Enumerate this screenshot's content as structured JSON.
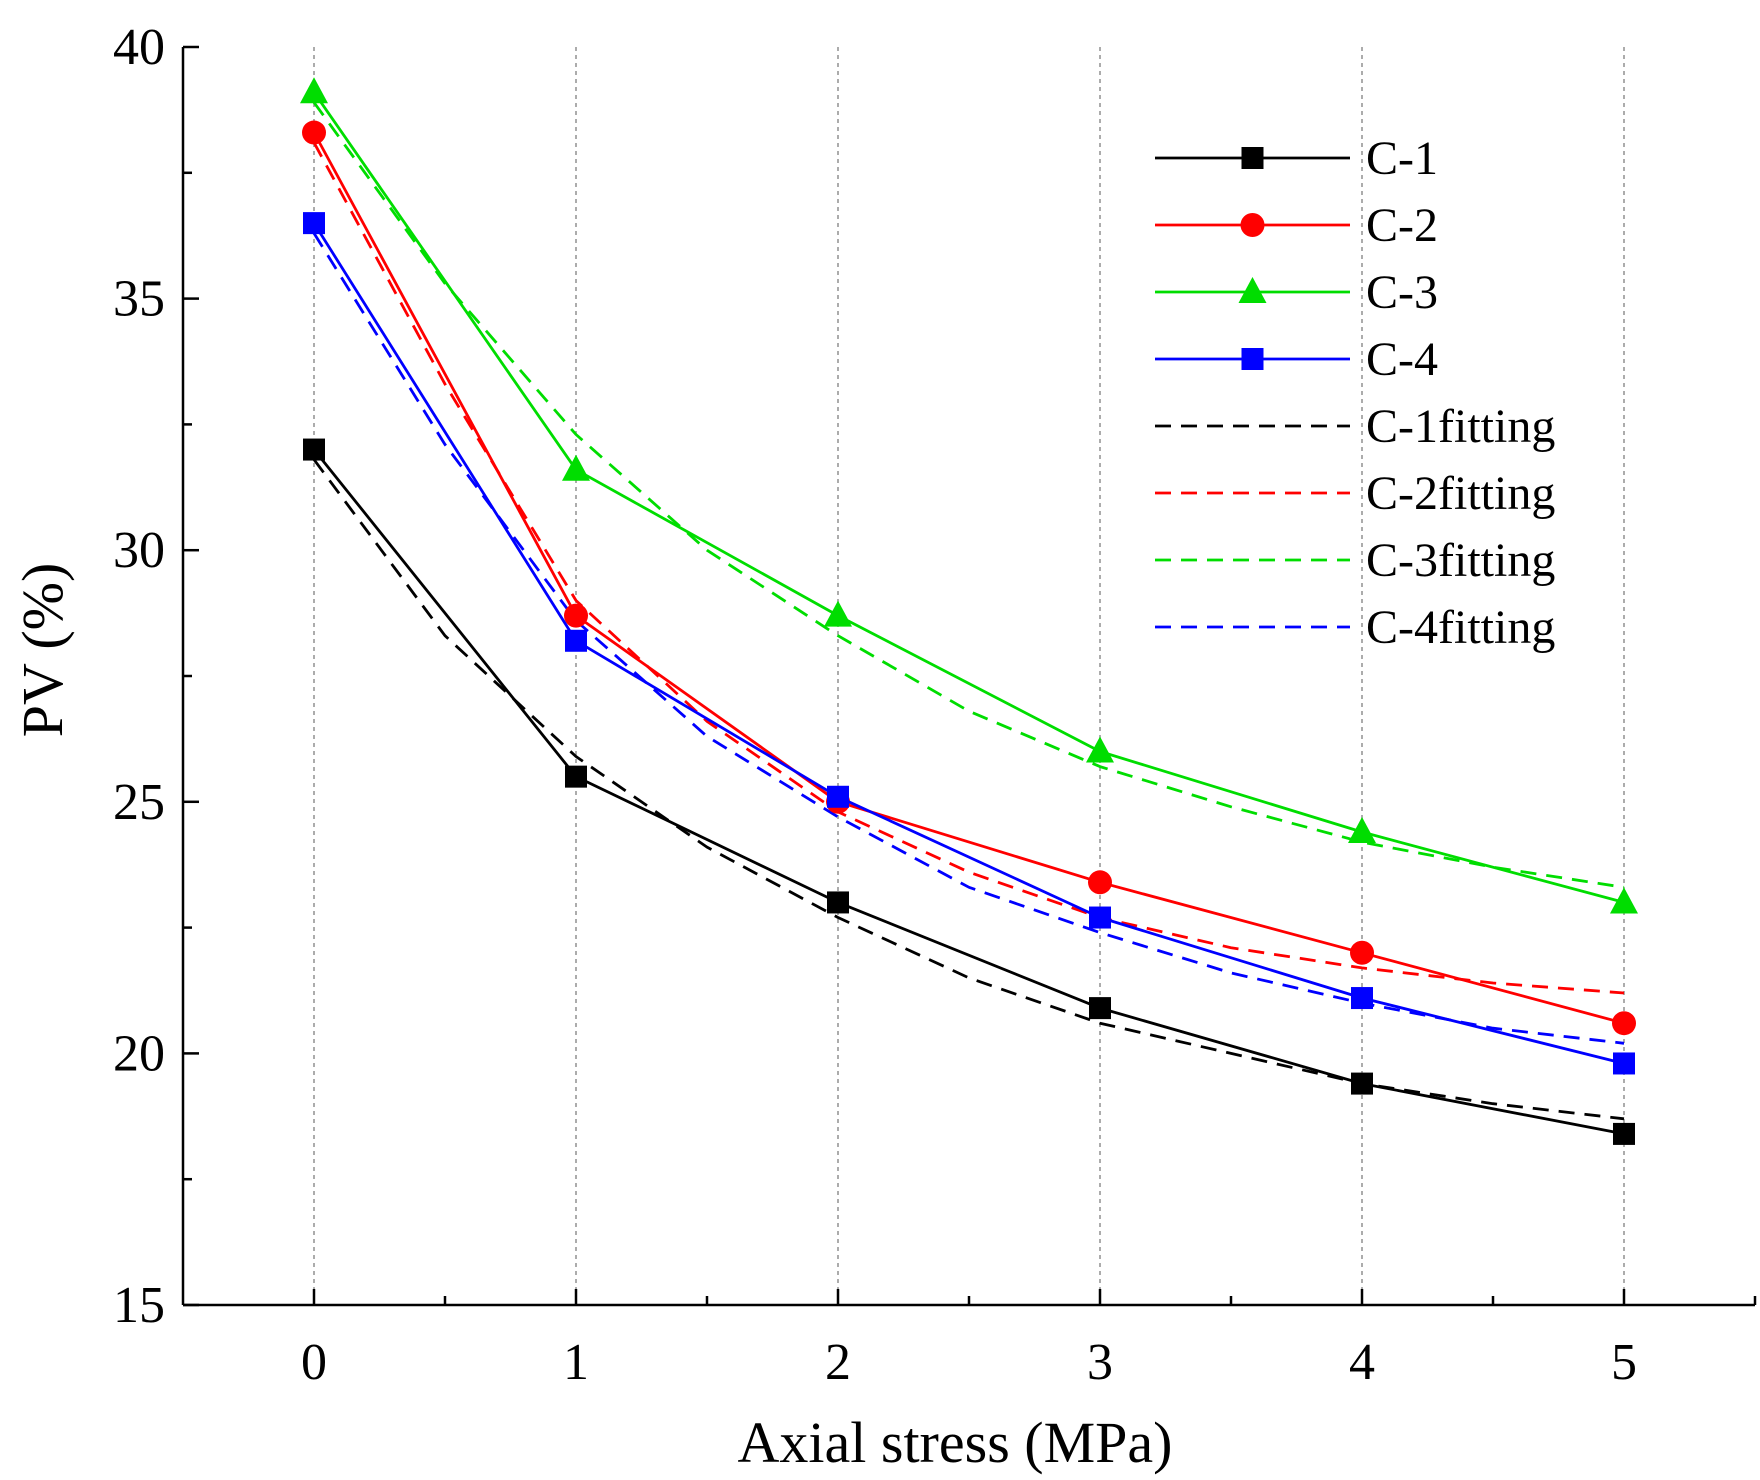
{
  "chart_data": {
    "type": "line",
    "title": "",
    "xlabel": "Axial stress (MPa)",
    "ylabel": "PV (%)",
    "xlim": [
      -0.5,
      5.5
    ],
    "ylim": [
      15,
      40
    ],
    "xticks": [
      0,
      1,
      2,
      3,
      4,
      5
    ],
    "xtick_labels": [
      "0",
      "1",
      "2",
      "3",
      "4",
      "5"
    ],
    "yticks": [
      15,
      20,
      25,
      30,
      35,
      40
    ],
    "ytick_labels": [
      "15",
      "20",
      "25",
      "30",
      "35",
      "40"
    ],
    "grid": "vertical dashed at x ticks",
    "legend_position": "top-right",
    "series": [
      {
        "name": "C-1",
        "color": "#000000",
        "style": "solid",
        "marker": "square",
        "x": [
          0,
          1,
          2,
          3,
          4,
          5
        ],
        "values": [
          32.0,
          25.5,
          23.0,
          20.9,
          19.4,
          18.4
        ]
      },
      {
        "name": "C-2",
        "color": "#ff0000",
        "style": "solid",
        "marker": "circle",
        "x": [
          0,
          1,
          2,
          3,
          4,
          5
        ],
        "values": [
          38.3,
          28.7,
          25.0,
          23.4,
          22.0,
          20.6
        ]
      },
      {
        "name": "C-3",
        "color": "#00dd00",
        "style": "solid",
        "marker": "triangle",
        "x": [
          0,
          1,
          2,
          3,
          4,
          5
        ],
        "values": [
          39.1,
          31.6,
          28.7,
          26.0,
          24.4,
          23.0
        ]
      },
      {
        "name": "C-4",
        "color": "#0000ff",
        "style": "solid",
        "marker": "square",
        "x": [
          0,
          1,
          2,
          3,
          4,
          5
        ],
        "values": [
          36.5,
          28.2,
          25.1,
          22.7,
          21.1,
          19.8
        ]
      },
      {
        "name": "C-1fitting",
        "color": "#000000",
        "style": "dashed",
        "marker": "none",
        "x": [
          0,
          0.5,
          1,
          1.5,
          2,
          2.5,
          3,
          3.5,
          4,
          4.5,
          5
        ],
        "values": [
          31.8,
          28.3,
          25.9,
          24.1,
          22.7,
          21.5,
          20.6,
          20.0,
          19.4,
          19.0,
          18.7
        ]
      },
      {
        "name": "C-2fitting",
        "color": "#ff0000",
        "style": "dashed",
        "marker": "none",
        "x": [
          0,
          0.5,
          1,
          1.5,
          2,
          2.5,
          3,
          3.5,
          4,
          4.5,
          5
        ],
        "values": [
          38.1,
          33.3,
          29.0,
          26.6,
          24.8,
          23.6,
          22.7,
          22.1,
          21.7,
          21.4,
          21.2
        ]
      },
      {
        "name": "C-3fitting",
        "color": "#00dd00",
        "style": "dashed",
        "marker": "none",
        "x": [
          0,
          0.5,
          1,
          1.5,
          2,
          2.5,
          3,
          3.5,
          4,
          4.5,
          5
        ],
        "values": [
          38.9,
          35.3,
          32.3,
          30.0,
          28.3,
          26.8,
          25.7,
          24.9,
          24.2,
          23.7,
          23.3
        ]
      },
      {
        "name": "C-4fitting",
        "color": "#0000ff",
        "style": "dashed",
        "marker": "none",
        "x": [
          0,
          0.5,
          1,
          1.5,
          2,
          2.5,
          3,
          3.5,
          4,
          4.5,
          5
        ],
        "values": [
          36.3,
          32.1,
          28.6,
          26.3,
          24.7,
          23.3,
          22.4,
          21.6,
          21.0,
          20.5,
          20.2
        ]
      }
    ]
  }
}
